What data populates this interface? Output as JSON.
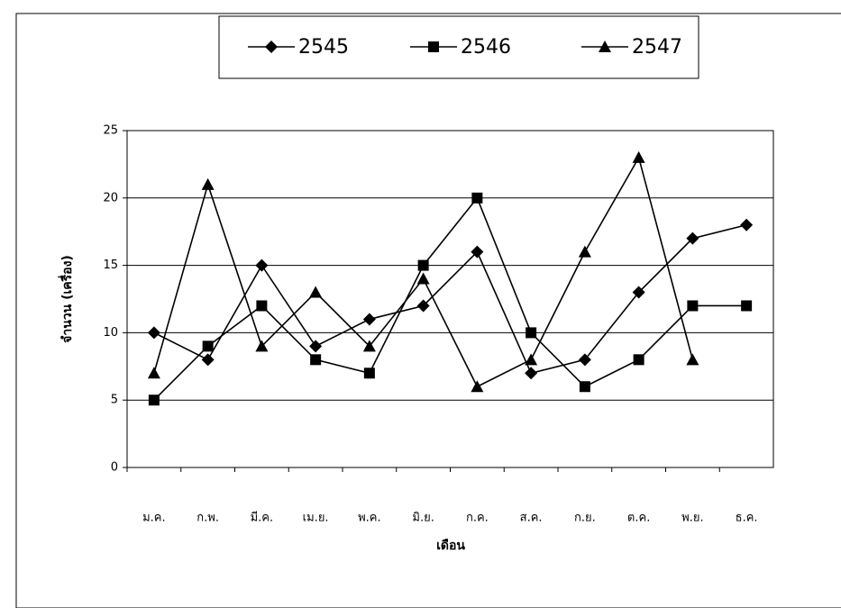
{
  "chart_data": {
    "type": "line",
    "y_label": "จำนวน (เครื่อง)",
    "x_label": "เดือน",
    "categories": [
      "ม.ค.",
      "ก.พ.",
      "มี.ค.",
      "เม.ย.",
      "พ.ค.",
      "มิ.ย.",
      "ก.ค.",
      "ส.ค.",
      "ก.ย.",
      "ต.ค.",
      "พ.ย.",
      "ธ.ค."
    ],
    "series": [
      {
        "name": "2545",
        "color": "#000000",
        "marker": "diamond",
        "values": [
          10,
          8,
          15,
          9,
          11,
          12,
          16,
          7,
          8,
          13,
          17,
          18
        ]
      },
      {
        "name": "2546",
        "color": "#000000",
        "marker": "square",
        "values": [
          5,
          9,
          12,
          8,
          7,
          15,
          20,
          10,
          6,
          8,
          12,
          12
        ]
      },
      {
        "name": "2547",
        "color": "#000000",
        "marker": "triangle",
        "values": [
          7,
          21,
          9,
          13,
          9,
          14,
          6,
          8,
          16,
          23,
          8,
          null
        ]
      }
    ],
    "ylim": [
      0,
      25
    ],
    "yticks": [
      0,
      5,
      10,
      15,
      20,
      25
    ],
    "grid": true,
    "legend": "top"
  }
}
